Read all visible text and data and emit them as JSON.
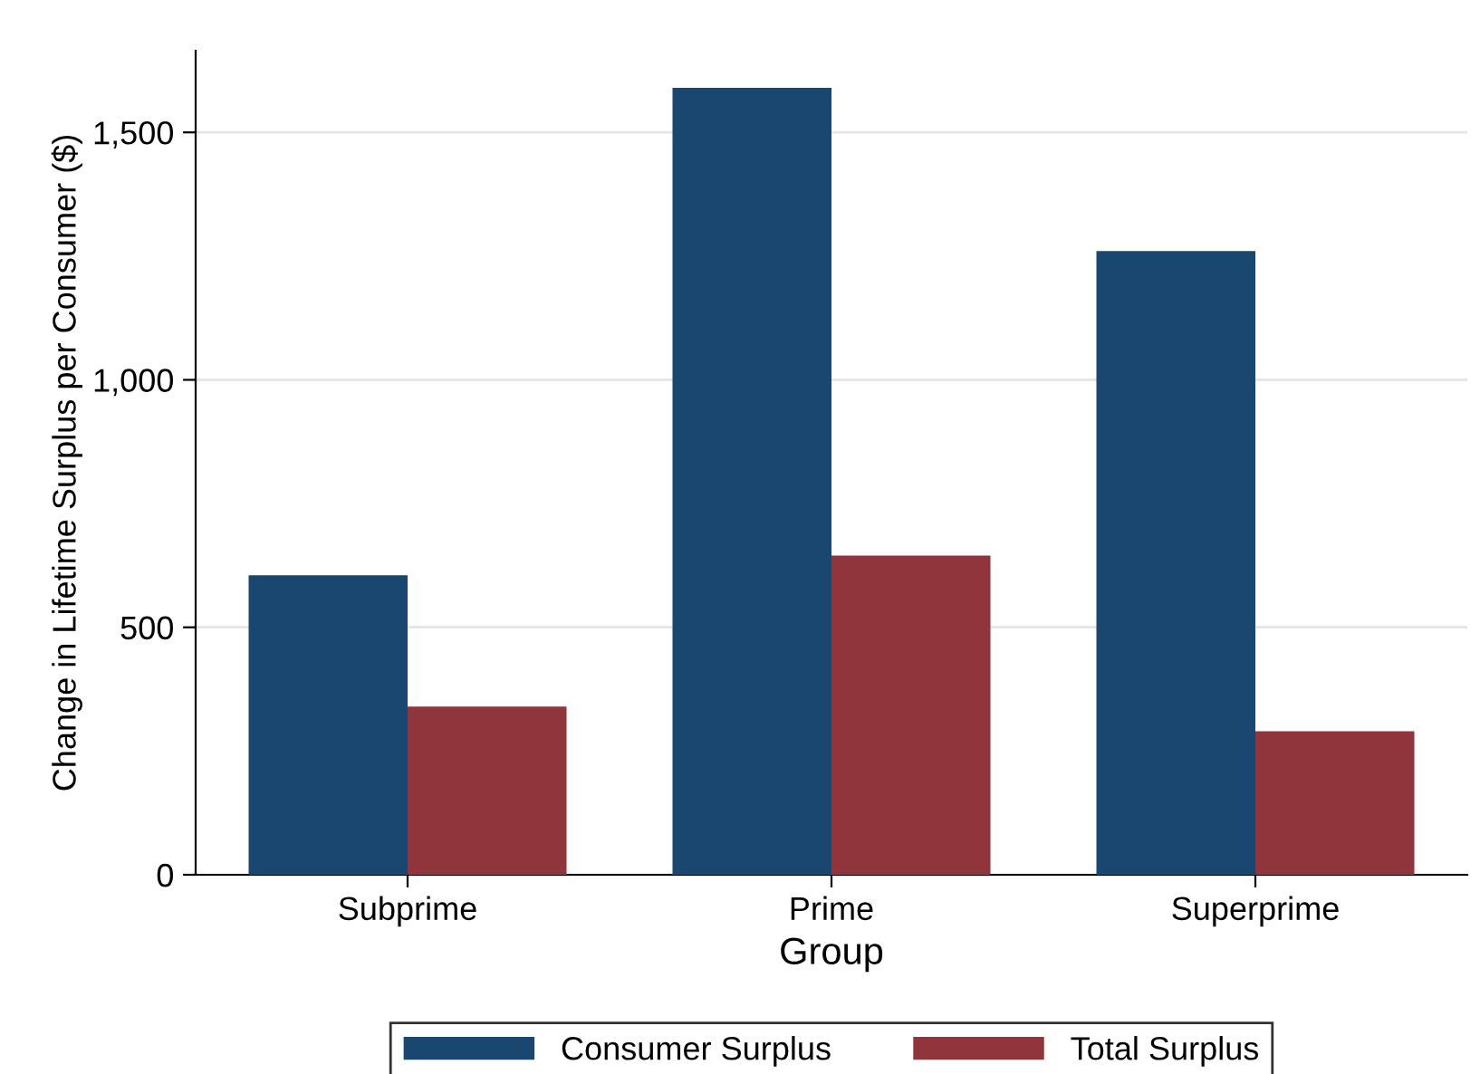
{
  "chart_data": {
    "type": "bar",
    "categories": [
      "Subprime",
      "Prime",
      "Superprime"
    ],
    "series": [
      {
        "name": "Consumer Surplus",
        "color": "#1a476f",
        "values": [
          605,
          1590,
          1260
        ]
      },
      {
        "name": "Total Surplus",
        "color": "#90353b",
        "values": [
          340,
          645,
          290
        ]
      }
    ],
    "xlabel": "Group",
    "ylabel": "Change in Lifetime Surplus per Consumer ($)",
    "ylim": [
      0,
      1665
    ],
    "yticks": [
      0,
      500,
      {
        "value": 1000,
        "label": "1,000"
      },
      {
        "value": 1500,
        "label": "1,500"
      }
    ],
    "grid": "y",
    "legend": "bottom"
  }
}
